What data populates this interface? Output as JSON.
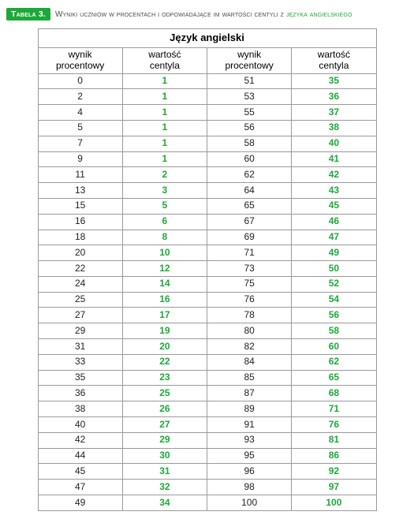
{
  "colors": {
    "accent": "#1da939",
    "border": "#9a9a9a",
    "text": "#4a4a4a",
    "score_text": "#222222",
    "page_bg": "#ffffff"
  },
  "typography": {
    "font_family": "Arial",
    "heading_badge_fontsize": 10.5,
    "heading_caption_fontsize": 10,
    "table_title_fontsize": 13,
    "table_cell_fontsize": 12
  },
  "heading": {
    "badge": "Tabela 3.",
    "caption_main": "Wyniki uczniów w procentach i odpowiadające im wartości centyli z ",
    "caption_em": "języka angielskiego"
  },
  "table": {
    "title": "Język angielski",
    "type": "table",
    "col_header_score": "wynik\nprocentowy",
    "col_header_centile": "wartość\ncentyla",
    "left": {
      "score": [
        0,
        2,
        4,
        5,
        7,
        9,
        11,
        13,
        15,
        16,
        18,
        20,
        22,
        24,
        25,
        27,
        29,
        31,
        33,
        35,
        36,
        38,
        40,
        42,
        44,
        45,
        47,
        49
      ],
      "centile": [
        1,
        1,
        1,
        1,
        1,
        1,
        2,
        3,
        5,
        6,
        8,
        10,
        12,
        14,
        16,
        17,
        19,
        20,
        22,
        23,
        25,
        26,
        27,
        29,
        30,
        31,
        32,
        34
      ]
    },
    "right": {
      "score": [
        51,
        53,
        55,
        56,
        58,
        60,
        62,
        64,
        65,
        67,
        69,
        71,
        73,
        75,
        76,
        78,
        80,
        82,
        84,
        85,
        87,
        89,
        91,
        93,
        95,
        96,
        98,
        100
      ],
      "centile": [
        35,
        36,
        37,
        38,
        40,
        41,
        42,
        43,
        45,
        46,
        47,
        49,
        50,
        52,
        54,
        56,
        58,
        60,
        62,
        65,
        68,
        71,
        76,
        81,
        86,
        92,
        97,
        100
      ]
    }
  }
}
